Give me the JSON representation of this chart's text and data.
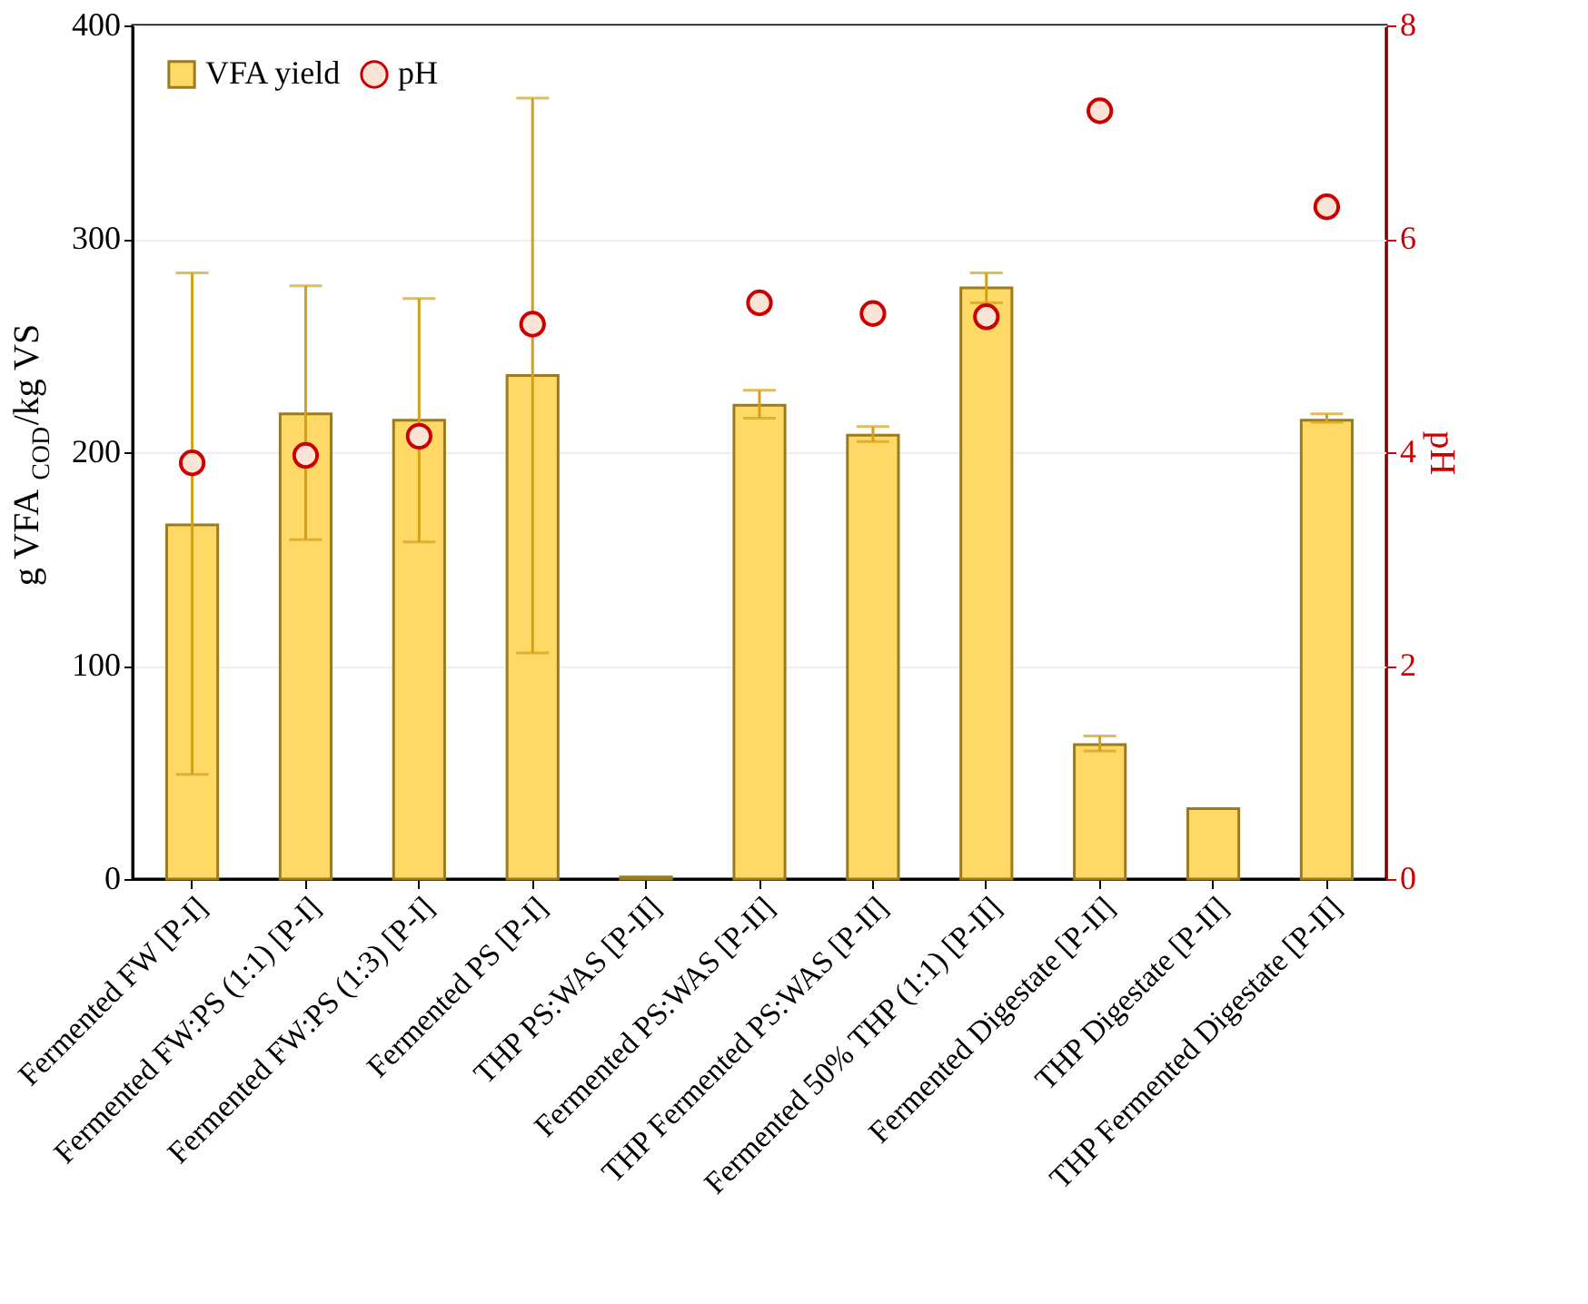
{
  "chart_data": {
    "type": "bar",
    "ylabel": "g VFA$_{COD}$/kg VS",
    "y2label": "pH",
    "categories": [
      "Fermented FW [P-I]",
      "Fermented FW:PS (1:1) [P-I]",
      "Fermented FW:PS (1:3) [P-I]",
      "Fermented PS [P-I]",
      "THP PS:WAS [P-II]",
      "Fermented PS:WAS [P-II]",
      "THP Fermented PS:WAS  [P-II]",
      "Fermented 50% THP (1:1) [P-II]",
      "Fermented Digestate [P-II]",
      "THP Digestate [P-II]",
      "THP Fermented Digestate [P-II]"
    ],
    "series": [
      {
        "name": "VFA yield",
        "color": "#ffd966",
        "values": [
          166,
          218,
          215,
          236,
          1,
          222,
          208,
          277,
          63,
          33,
          215
        ],
        "errors": [
          [
            49,
            284
          ],
          [
            159,
            278
          ],
          [
            158,
            272
          ],
          [
            106,
            366
          ],
          null,
          [
            216,
            229
          ],
          [
            205,
            212
          ],
          [
            270,
            284
          ],
          [
            60,
            67
          ],
          null,
          [
            214,
            218
          ]
        ]
      },
      {
        "name": "pH",
        "type": "scatter",
        "axis": "y2",
        "color": "#cc0000",
        "marker": "circle",
        "values": [
          3.9,
          3.97,
          4.15,
          5.2,
          null,
          5.4,
          5.3,
          5.27,
          7.2,
          null,
          6.3
        ]
      }
    ],
    "ylim": [
      0,
      400
    ],
    "yticks": [
      0,
      100,
      200,
      300,
      400
    ],
    "y2lim": [
      0,
      8
    ],
    "y2ticks": [
      0,
      2,
      4,
      6,
      8
    ],
    "grid": "y",
    "legend": "top left"
  }
}
